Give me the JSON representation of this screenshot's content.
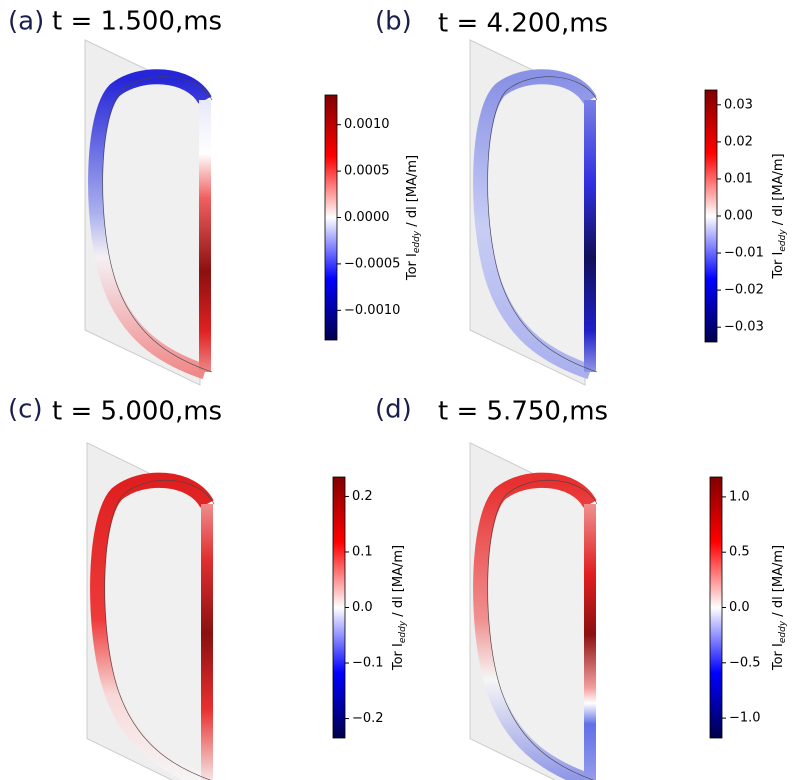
{
  "chart_data": [
    {
      "type": "colorbar",
      "label": "(a)",
      "title": "t = 1.500,ms",
      "colorbar_label": {
        "prefix": "Tor I",
        "subscript": "eddy",
        "suffix": " / dl [MA/m]"
      },
      "ylim": [
        -0.00132,
        0.00132
      ],
      "yticks": [
        {
          "value": -0.001,
          "label": "−0.0010"
        },
        {
          "value": -0.0005,
          "label": "−0.0005"
        },
        {
          "value": 0,
          "label": "0.0000"
        },
        {
          "value": 0.0005,
          "label": "0.0005"
        },
        {
          "value": 0.001,
          "label": "0.0010"
        }
      ]
    },
    {
      "type": "colorbar",
      "label": "(b)",
      "title": "t = 4.200,ms",
      "colorbar_label": {
        "prefix": "Tor I",
        "subscript": "eddy",
        "suffix": " / dl [MA/m]"
      },
      "ylim": [
        -0.034,
        0.034
      ],
      "yticks": [
        {
          "value": -0.03,
          "label": "−0.03"
        },
        {
          "value": -0.02,
          "label": "−0.02"
        },
        {
          "value": -0.01,
          "label": "−0.01"
        },
        {
          "value": 0,
          "label": "0.00"
        },
        0.01,
        0.02,
        0.03
      ]
    },
    {
      "type": "colorbar",
      "label": "(c)",
      "title": "t = 5.000,ms",
      "colorbar_label": {
        "prefix": "Tor I",
        "subscript": "eddy",
        "suffix": " / dl [MA/m]"
      },
      "ylim": [
        -0.235,
        0.235
      ],
      "yticks": [
        {
          "value": -0.2,
          "label": "−0.2"
        },
        {
          "value": -0.1,
          "label": "−0.1"
        },
        {
          "value": 0,
          "label": "0.0"
        },
        0.1,
        0.2
      ]
    },
    {
      "type": "colorbar",
      "label": "(d)",
      "title": "t = 5.750,ms",
      "colorbar_label": {
        "prefix": "Tor I",
        "subscript": "eddy",
        "suffix": " / dl [MA/m]"
      },
      "ylim": [
        -1.18,
        1.18
      ],
      "yticks": [
        {
          "value": -1,
          "label": "−1.0"
        },
        {
          "value": -0.5,
          "label": "−0.5"
        },
        {
          "value": 0,
          "label": "0.0"
        },
        0.5,
        {
          "value": 1,
          "label": "1.0"
        }
      ]
    }
  ]
}
